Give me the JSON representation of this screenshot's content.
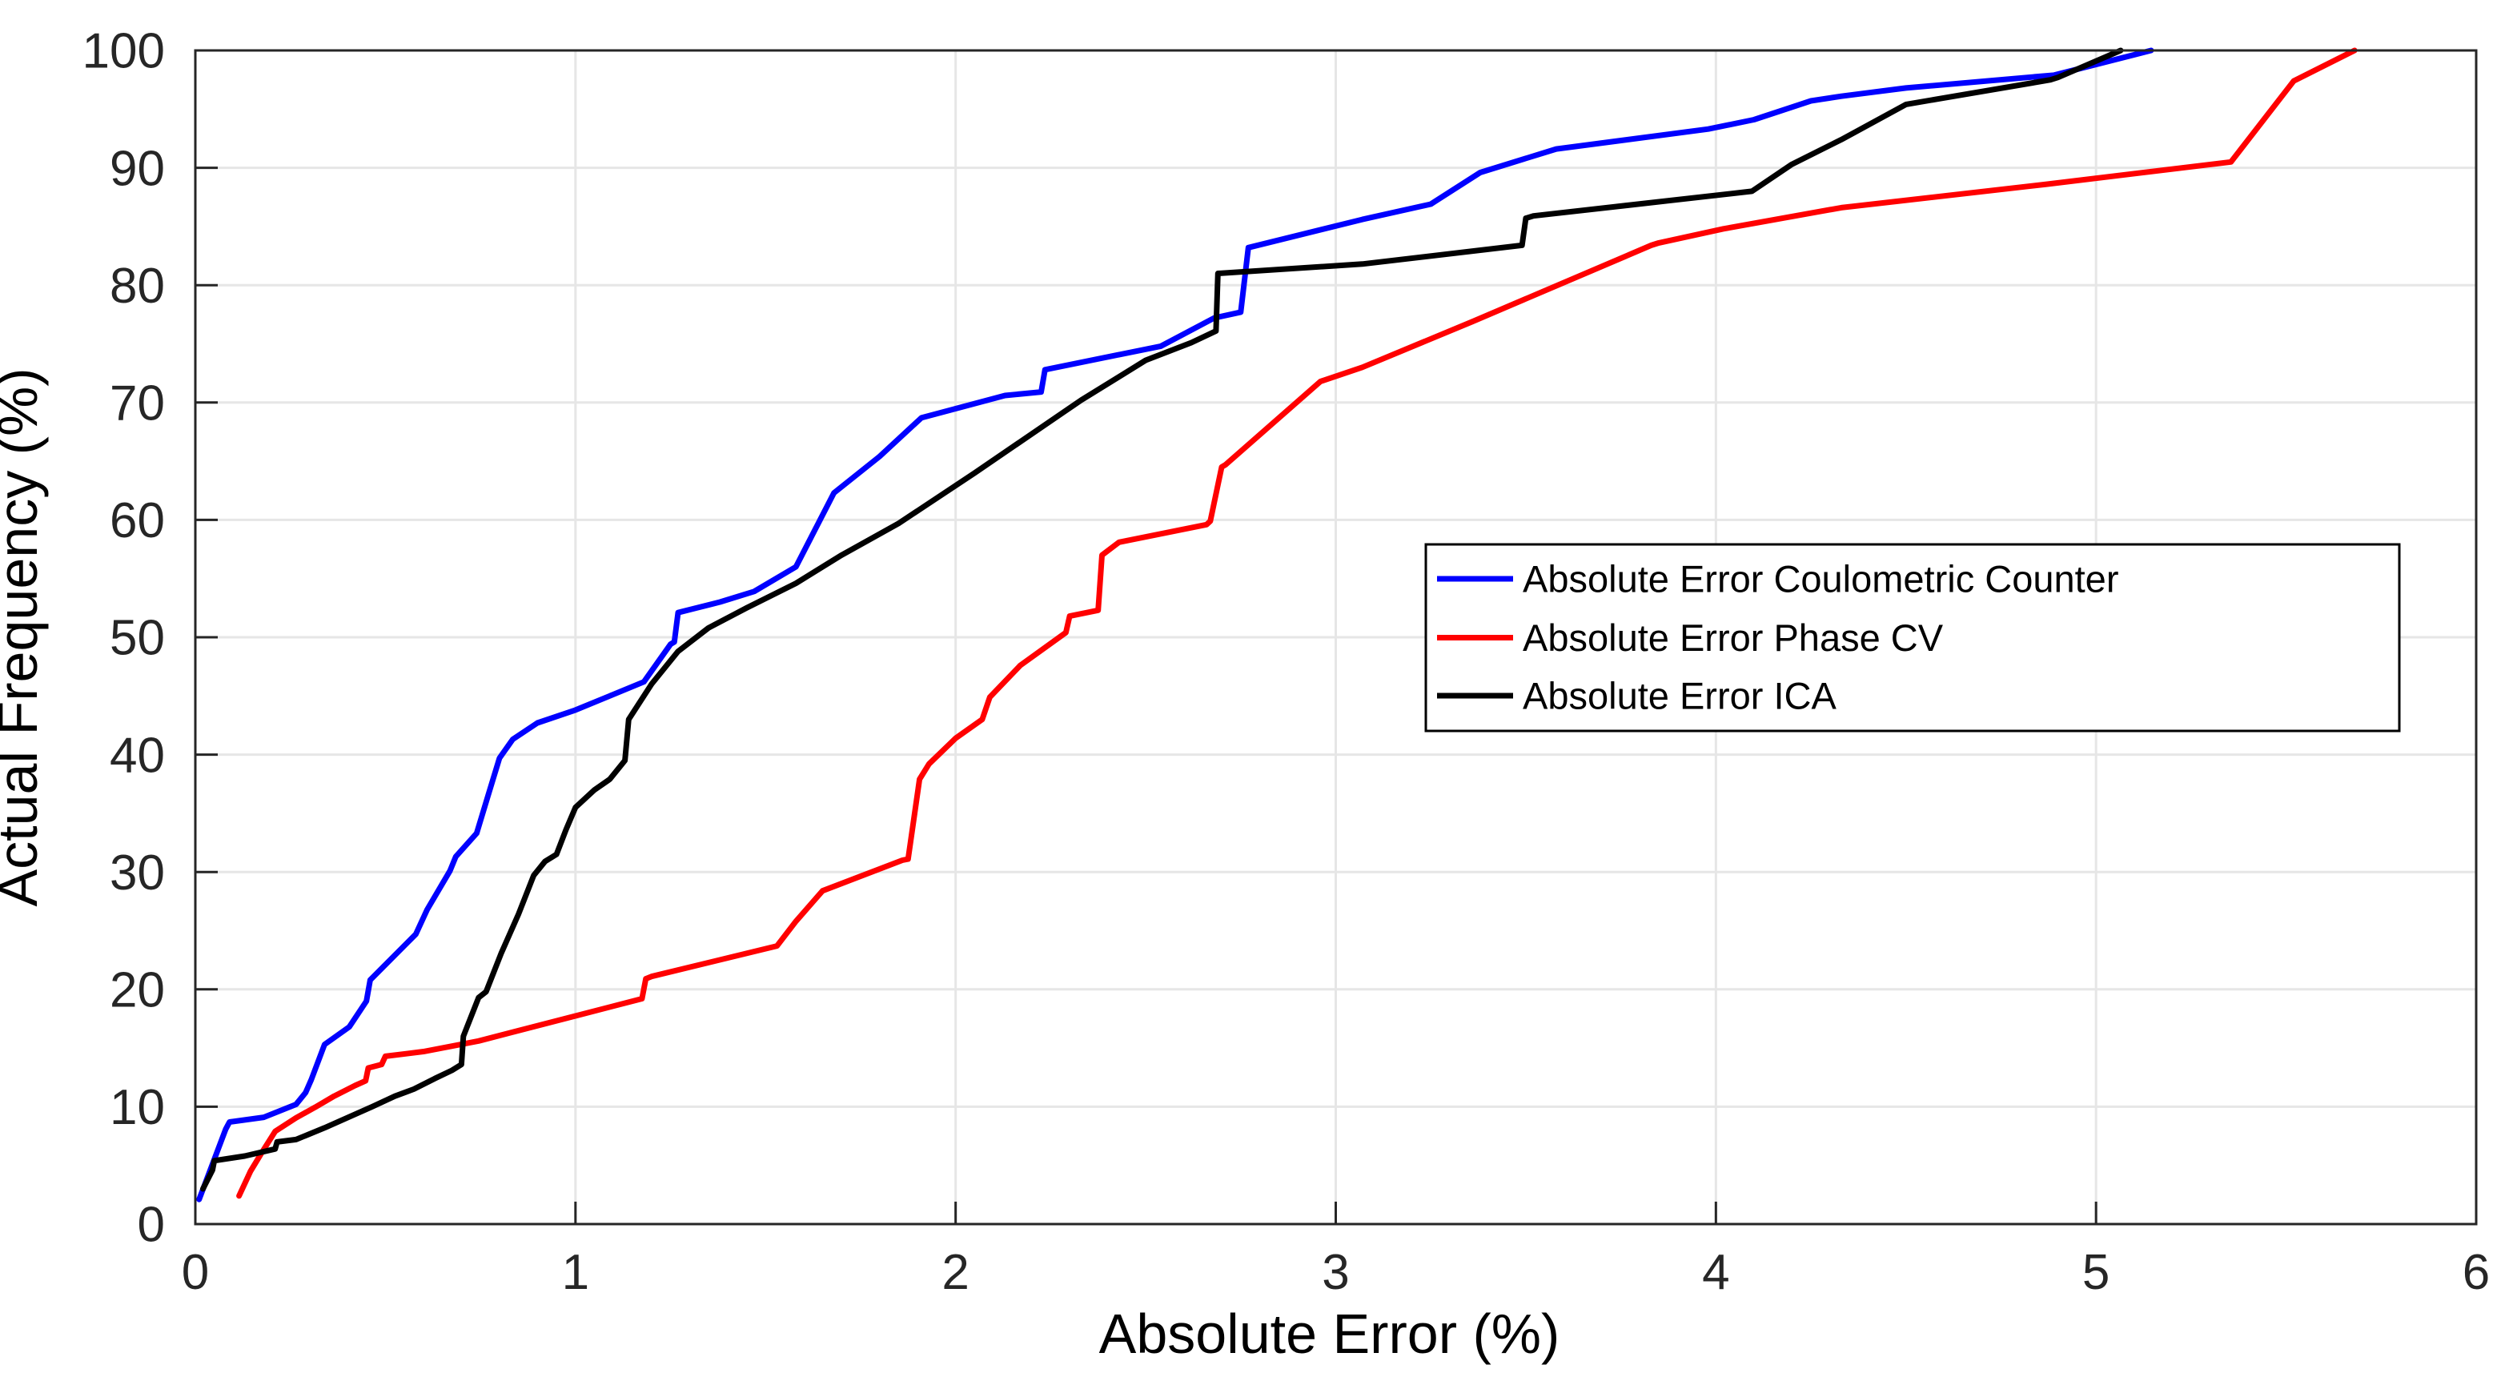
{
  "chart_data": {
    "type": "line",
    "title": "",
    "xlabel": "Absolute Error (%)",
    "ylabel": "Actual Frequency (%)",
    "xlim": [
      0,
      6
    ],
    "ylim": [
      0,
      100
    ],
    "grid": true,
    "legend_position": "right-middle",
    "x_ticks": [
      "0",
      "1",
      "2",
      "3",
      "4",
      "5",
      "6"
    ],
    "y_ticks": [
      "0",
      "10",
      "20",
      "30",
      "40",
      "50",
      "60",
      "70",
      "80",
      "90",
      "100"
    ],
    "colors": {
      "grid": "#e6e6e6",
      "axis": "#262626",
      "background": "#ffffff",
      "legend_border": "#000000"
    },
    "series": [
      {
        "name": "Absolute Error Coulometric Counter",
        "color": "#0000ff",
        "points": [
          [
            0.01,
            2.1
          ],
          [
            0.08,
            8.1
          ],
          [
            0.09,
            8.7
          ],
          [
            0.18,
            9.1
          ],
          [
            0.265,
            10.2
          ],
          [
            0.29,
            11.2
          ],
          [
            0.305,
            12.3
          ],
          [
            0.34,
            15.3
          ],
          [
            0.405,
            16.8
          ],
          [
            0.45,
            19.0
          ],
          [
            0.46,
            20.8
          ],
          [
            0.58,
            24.7
          ],
          [
            0.61,
            26.8
          ],
          [
            0.67,
            30.1
          ],
          [
            0.685,
            31.3
          ],
          [
            0.74,
            33.3
          ],
          [
            0.77,
            36.5
          ],
          [
            0.8,
            39.7
          ],
          [
            0.835,
            41.3
          ],
          [
            0.9,
            42.7
          ],
          [
            1.0,
            43.8
          ],
          [
            1.09,
            45.0
          ],
          [
            1.18,
            46.2
          ],
          [
            1.25,
            49.4
          ],
          [
            1.26,
            49.6
          ],
          [
            1.27,
            52.1
          ],
          [
            1.38,
            53.0
          ],
          [
            1.47,
            53.9
          ],
          [
            1.58,
            56.0
          ],
          [
            1.68,
            62.3
          ],
          [
            1.8,
            65.4
          ],
          [
            1.91,
            68.7
          ],
          [
            2.13,
            70.6
          ],
          [
            2.225,
            70.9
          ],
          [
            2.235,
            72.8
          ],
          [
            2.54,
            74.8
          ],
          [
            2.68,
            77.2
          ],
          [
            2.75,
            77.7
          ],
          [
            2.77,
            83.2
          ],
          [
            3.07,
            85.6
          ],
          [
            3.25,
            86.9
          ],
          [
            3.38,
            89.6
          ],
          [
            3.58,
            91.6
          ],
          [
            3.98,
            93.3
          ],
          [
            4.1,
            94.1
          ],
          [
            4.25,
            95.7
          ],
          [
            4.33,
            96.1
          ],
          [
            4.5,
            96.8
          ],
          [
            4.89,
            97.9
          ],
          [
            5.145,
            100
          ]
        ]
      },
      {
        "name": "Absolute Error Phase CV",
        "color": "#ff0000",
        "points": [
          [
            0.115,
            2.4
          ],
          [
            0.145,
            4.5
          ],
          [
            0.175,
            6.1
          ],
          [
            0.21,
            7.9
          ],
          [
            0.265,
            9.05
          ],
          [
            0.315,
            9.95
          ],
          [
            0.365,
            10.9
          ],
          [
            0.42,
            11.8
          ],
          [
            0.448,
            12.2
          ],
          [
            0.455,
            13.3
          ],
          [
            0.49,
            13.6
          ],
          [
            0.5,
            14.3
          ],
          [
            0.6,
            14.7
          ],
          [
            0.745,
            15.6
          ],
          [
            1.175,
            19.2
          ],
          [
            1.185,
            20.9
          ],
          [
            1.2,
            21.1
          ],
          [
            1.53,
            23.7
          ],
          [
            1.58,
            25.8
          ],
          [
            1.65,
            28.4
          ],
          [
            1.86,
            31.0
          ],
          [
            1.875,
            31.1
          ],
          [
            1.905,
            37.9
          ],
          [
            1.93,
            39.2
          ],
          [
            2.0,
            41.4
          ],
          [
            2.07,
            43.0
          ],
          [
            2.09,
            44.9
          ],
          [
            2.17,
            47.6
          ],
          [
            2.29,
            50.4
          ],
          [
            2.3,
            51.8
          ],
          [
            2.375,
            52.3
          ],
          [
            2.385,
            57.0
          ],
          [
            2.43,
            58.1
          ],
          [
            2.66,
            59.6
          ],
          [
            2.67,
            59.9
          ],
          [
            2.7,
            64.5
          ],
          [
            2.71,
            64.7
          ],
          [
            2.96,
            71.8
          ],
          [
            3.07,
            73.0
          ],
          [
            3.36,
            76.9
          ],
          [
            3.83,
            83.4
          ],
          [
            3.85,
            83.6
          ],
          [
            4.02,
            84.8
          ],
          [
            4.33,
            86.6
          ],
          [
            4.87,
            88.6
          ],
          [
            5.355,
            90.5
          ],
          [
            5.52,
            97.4
          ],
          [
            5.68,
            100
          ]
        ]
      },
      {
        "name": "Absolute Error ICA",
        "color": "#000000",
        "points": [
          [
            0.02,
            3.0
          ],
          [
            0.045,
            4.6
          ],
          [
            0.05,
            5.4
          ],
          [
            0.13,
            5.8
          ],
          [
            0.21,
            6.4
          ],
          [
            0.215,
            7.0
          ],
          [
            0.265,
            7.2
          ],
          [
            0.34,
            8.2
          ],
          [
            0.465,
            10.0
          ],
          [
            0.525,
            10.9
          ],
          [
            0.575,
            11.5
          ],
          [
            0.63,
            12.4
          ],
          [
            0.675,
            13.1
          ],
          [
            0.7,
            13.6
          ],
          [
            0.705,
            16.0
          ],
          [
            0.745,
            19.3
          ],
          [
            0.765,
            19.8
          ],
          [
            0.805,
            23.1
          ],
          [
            0.85,
            26.4
          ],
          [
            0.89,
            29.7
          ],
          [
            0.92,
            30.9
          ],
          [
            0.95,
            31.5
          ],
          [
            0.975,
            33.6
          ],
          [
            1.0,
            35.5
          ],
          [
            1.05,
            37.0
          ],
          [
            1.09,
            37.9
          ],
          [
            1.13,
            39.5
          ],
          [
            1.14,
            43.0
          ],
          [
            1.2,
            46.0
          ],
          [
            1.27,
            48.8
          ],
          [
            1.35,
            50.8
          ],
          [
            1.45,
            52.5
          ],
          [
            1.58,
            54.6
          ],
          [
            1.7,
            57.0
          ],
          [
            1.85,
            59.7
          ],
          [
            2.05,
            64.0
          ],
          [
            2.285,
            69.2
          ],
          [
            2.33,
            70.2
          ],
          [
            2.5,
            73.6
          ],
          [
            2.62,
            75.1
          ],
          [
            2.685,
            76.1
          ],
          [
            2.69,
            81.0
          ],
          [
            3.07,
            81.8
          ],
          [
            3.49,
            83.4
          ],
          [
            3.5,
            85.7
          ],
          [
            3.52,
            85.9
          ],
          [
            4.095,
            88.0
          ],
          [
            4.2,
            90.3
          ],
          [
            4.33,
            92.4
          ],
          [
            4.5,
            95.4
          ],
          [
            4.88,
            97.5
          ],
          [
            4.9,
            97.7
          ],
          [
            5.065,
            100
          ]
        ]
      }
    ]
  }
}
